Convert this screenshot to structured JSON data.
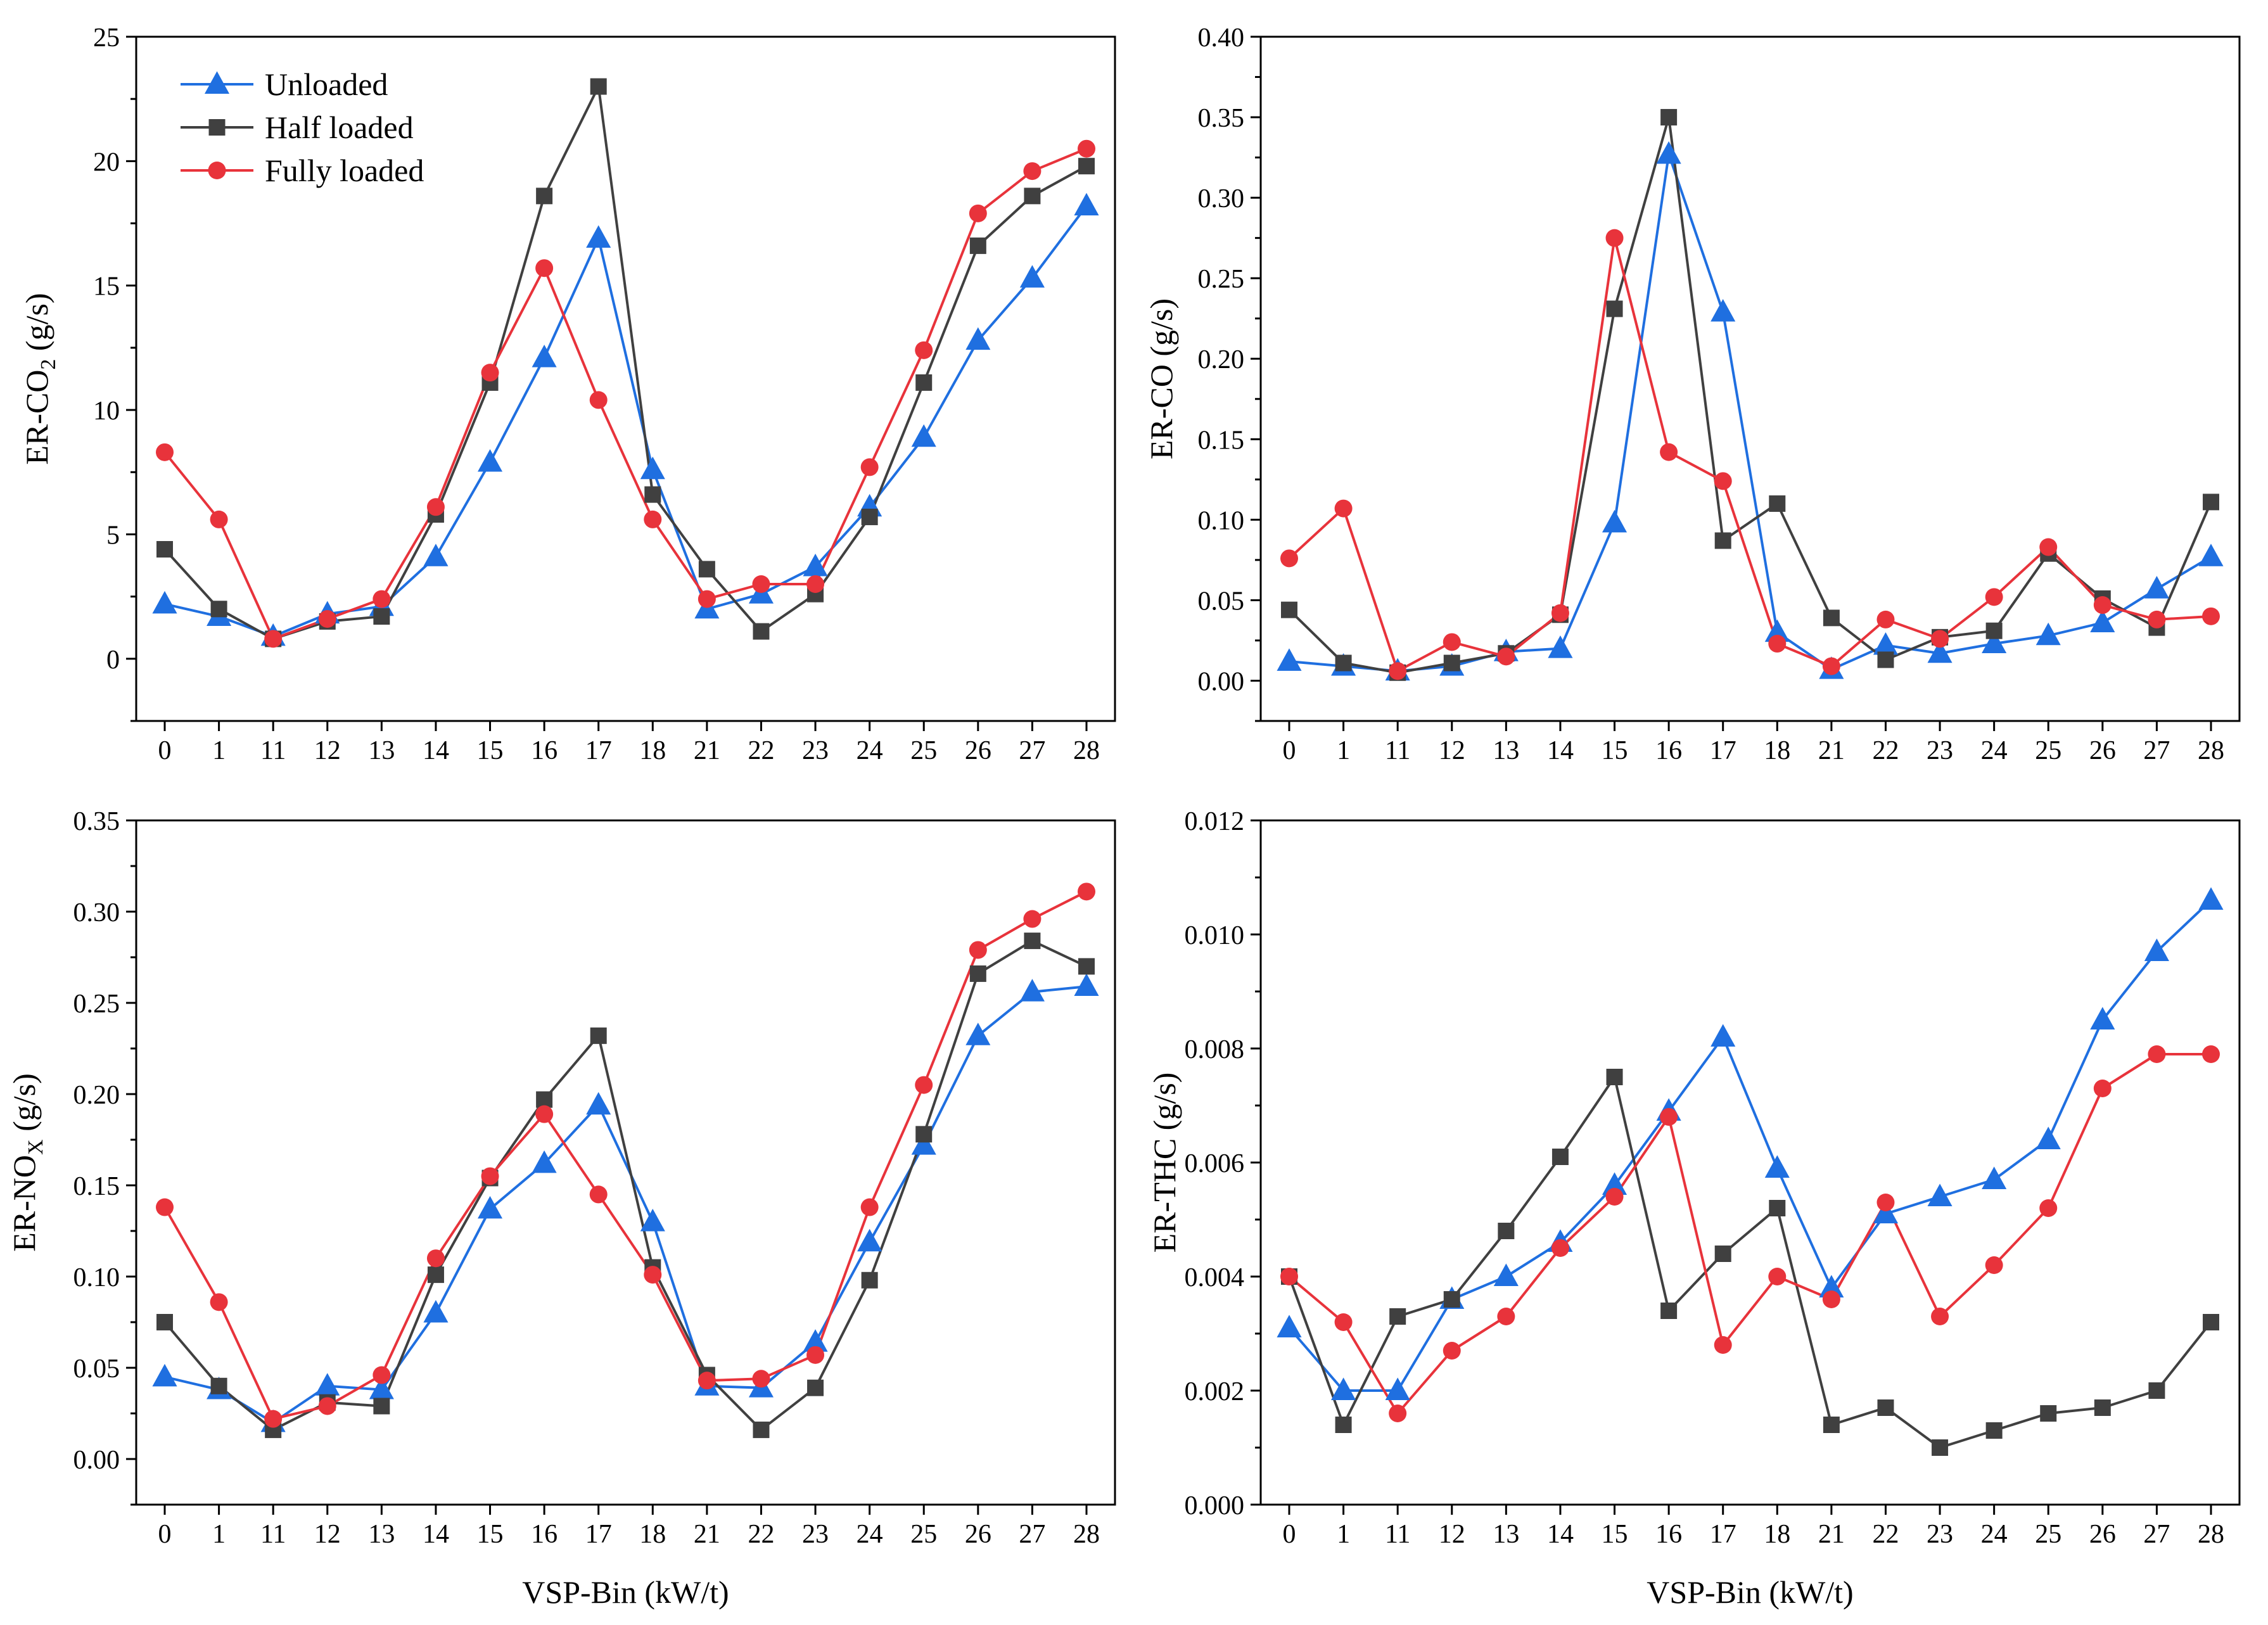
{
  "colors": {
    "Unloaded": "#1f6fe0",
    "Half loaded": "#404040",
    "Fully loaded": "#e8333b"
  },
  "markers": {
    "Unloaded": "triangle",
    "Half loaded": "square",
    "Fully loaded": "circle"
  },
  "legend": [
    "Unloaded",
    "Half loaded",
    "Fully loaded"
  ],
  "chart_data": [
    {
      "type": "line",
      "panel": "top-left",
      "title": "",
      "ylabel": "ER-CO2 (g/s)",
      "ylabel_main": "ER-CO",
      "ylabel_sub": "2",
      "ylabel_tail": " (g/s)",
      "xlabel": "",
      "categories": [
        "0",
        "1",
        "11",
        "12",
        "13",
        "14",
        "15",
        "16",
        "17",
        "18",
        "21",
        "22",
        "23",
        "24",
        "25",
        "26",
        "27",
        "28"
      ],
      "ylim": [
        -2.5,
        25
      ],
      "yticks": [
        "0",
        "5",
        "10",
        "15",
        "20",
        "25"
      ],
      "ytick_values": [
        0,
        5,
        10,
        15,
        20,
        25
      ],
      "legend_position": "top-left",
      "series": [
        {
          "name": "Unloaded",
          "values": [
            2.2,
            1.7,
            0.9,
            1.8,
            2.1,
            4.1,
            7.9,
            12.1,
            16.9,
            7.6,
            2.0,
            2.6,
            3.7,
            6.1,
            8.9,
            12.8,
            15.3,
            18.2
          ]
        },
        {
          "name": "Half loaded",
          "values": [
            4.4,
            2.0,
            0.8,
            1.5,
            1.7,
            5.8,
            11.1,
            18.6,
            23.0,
            6.6,
            3.6,
            1.1,
            2.6,
            5.7,
            11.1,
            16.6,
            18.6,
            19.8
          ]
        },
        {
          "name": "Fully loaded",
          "values": [
            8.3,
            5.6,
            0.8,
            1.6,
            2.4,
            6.1,
            11.5,
            15.7,
            10.4,
            5.6,
            2.4,
            3.0,
            3.0,
            7.7,
            12.4,
            17.9,
            19.6,
            20.5
          ]
        }
      ]
    },
    {
      "type": "line",
      "panel": "top-right",
      "title": "",
      "ylabel": "ER-CO (g/s)",
      "ylabel_main": "ER-CO (g/s)",
      "ylabel_sub": "",
      "ylabel_tail": "",
      "xlabel": "",
      "categories": [
        "0",
        "1",
        "11",
        "12",
        "13",
        "14",
        "15",
        "16",
        "17",
        "18",
        "21",
        "22",
        "23",
        "24",
        "25",
        "26",
        "27",
        "28"
      ],
      "ylim": [
        -0.025,
        0.4
      ],
      "yticks": [
        "0.00",
        "0.05",
        "0.10",
        "0.15",
        "0.20",
        "0.25",
        "0.30",
        "0.35",
        "0.40"
      ],
      "ytick_values": [
        0,
        0.05,
        0.1,
        0.15,
        0.2,
        0.25,
        0.3,
        0.35,
        0.4
      ],
      "series": [
        {
          "name": "Unloaded",
          "values": [
            0.012,
            0.009,
            0.006,
            0.009,
            0.018,
            0.02,
            0.098,
            0.327,
            0.229,
            0.03,
            0.007,
            0.022,
            0.017,
            0.023,
            0.028,
            0.036,
            0.057,
            0.077
          ]
        },
        {
          "name": "Half loaded",
          "values": [
            0.044,
            0.011,
            0.005,
            0.011,
            0.017,
            0.041,
            0.231,
            0.35,
            0.087,
            0.11,
            0.039,
            0.013,
            0.027,
            0.031,
            0.079,
            0.051,
            0.033,
            0.111
          ]
        },
        {
          "name": "Fully loaded",
          "values": [
            0.076,
            0.107,
            0.006,
            0.024,
            0.015,
            0.042,
            0.275,
            0.142,
            0.124,
            0.023,
            0.009,
            0.038,
            0.026,
            0.052,
            0.083,
            0.047,
            0.038,
            0.04
          ]
        }
      ]
    },
    {
      "type": "line",
      "panel": "bottom-left",
      "title": "",
      "ylabel": "ER-NOX (g/s)",
      "ylabel_main": "ER-NO",
      "ylabel_sub": "X",
      "ylabel_tail": " (g/s)",
      "xlabel": "VSP-Bin (kW/t)",
      "categories": [
        "0",
        "1",
        "11",
        "12",
        "13",
        "14",
        "15",
        "16",
        "17",
        "18",
        "21",
        "22",
        "23",
        "24",
        "25",
        "26",
        "27",
        "28"
      ],
      "ylim": [
        -0.025,
        0.35
      ],
      "yticks": [
        "0.00",
        "0.05",
        "0.10",
        "0.15",
        "0.20",
        "0.25",
        "0.30",
        "0.35"
      ],
      "ytick_values": [
        0,
        0.05,
        0.1,
        0.15,
        0.2,
        0.25,
        0.3,
        0.35
      ],
      "series": [
        {
          "name": "Unloaded",
          "values": [
            0.045,
            0.038,
            0.02,
            0.04,
            0.038,
            0.08,
            0.137,
            0.162,
            0.194,
            0.13,
            0.04,
            0.039,
            0.064,
            0.119,
            0.172,
            0.232,
            0.256,
            0.259
          ]
        },
        {
          "name": "Half loaded",
          "values": [
            0.075,
            0.04,
            0.016,
            0.031,
            0.029,
            0.101,
            0.154,
            0.197,
            0.232,
            0.105,
            0.046,
            0.016,
            0.039,
            0.098,
            0.178,
            0.266,
            0.284,
            0.27
          ]
        },
        {
          "name": "Fully loaded",
          "values": [
            0.138,
            0.086,
            0.022,
            0.029,
            0.046,
            0.11,
            0.155,
            0.189,
            0.145,
            0.101,
            0.043,
            0.044,
            0.057,
            0.138,
            0.205,
            0.279,
            0.296,
            0.311
          ]
        }
      ]
    },
    {
      "type": "line",
      "panel": "bottom-right",
      "title": "",
      "ylabel": "ER-THC (g/s)",
      "ylabel_main": "ER-THC (g/s)",
      "ylabel_sub": "",
      "ylabel_tail": "",
      "xlabel": "VSP-Bin (kW/t)",
      "categories": [
        "0",
        "1",
        "11",
        "12",
        "13",
        "14",
        "15",
        "16",
        "17",
        "18",
        "21",
        "22",
        "23",
        "24",
        "25",
        "26",
        "27",
        "28"
      ],
      "ylim": [
        0,
        0.012
      ],
      "yticks": [
        "0.000",
        "0.002",
        "0.004",
        "0.006",
        "0.008",
        "0.010",
        "0.012"
      ],
      "ytick_values": [
        0,
        0.002,
        0.004,
        0.006,
        0.008,
        0.01,
        0.012
      ],
      "series": [
        {
          "name": "Unloaded",
          "values": [
            0.0031,
            0.002,
            0.002,
            0.0036,
            0.004,
            0.0046,
            0.0056,
            0.0069,
            0.0082,
            0.0059,
            0.0038,
            0.0051,
            0.0054,
            0.0057,
            0.0064,
            0.0085,
            0.0097,
            0.0106
          ]
        },
        {
          "name": "Half loaded",
          "values": [
            0.004,
            0.0014,
            0.0033,
            0.0036,
            0.0048,
            0.0061,
            0.0075,
            0.0034,
            0.0044,
            0.0052,
            0.0014,
            0.0017,
            0.001,
            0.0013,
            0.0016,
            0.0017,
            0.002,
            0.0032
          ]
        },
        {
          "name": "Fully loaded",
          "values": [
            0.004,
            0.0032,
            0.0016,
            0.0027,
            0.0033,
            0.0045,
            0.0054,
            0.0068,
            0.0028,
            0.004,
            0.0036,
            0.0053,
            0.0033,
            0.0042,
            0.0052,
            0.0073,
            0.0079,
            0.0079
          ]
        }
      ]
    }
  ]
}
